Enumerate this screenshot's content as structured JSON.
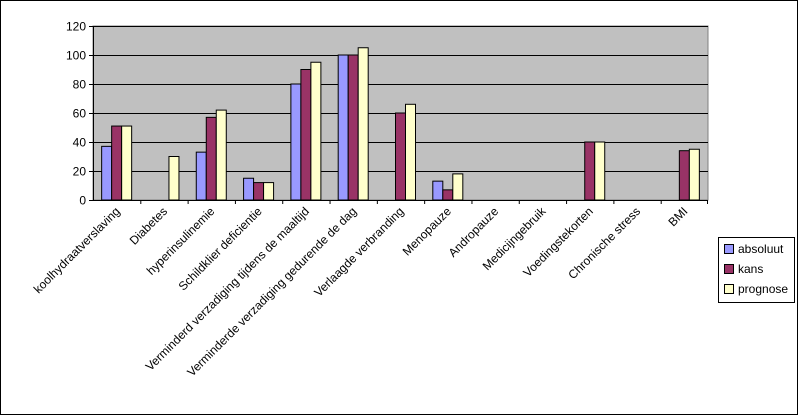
{
  "chart_data": {
    "type": "bar",
    "categories": [
      "koolhydraatverslaving",
      "Diabetes",
      "hyperinsulinemie",
      "Schildklier deficientie",
      "Verminderd verzadiging tijdens de maaltijd",
      "Verminderde verzadiging gedurende de dag",
      "Verlaagde verbranding",
      "Menopauze",
      "Andropauze",
      "Medicijngebruik",
      "Voedingstekorten",
      "Chronische stress",
      "BMI"
    ],
    "series": [
      {
        "name": "absoluut",
        "color": "#9999ff",
        "values": [
          37,
          0,
          33,
          15,
          80,
          100,
          0,
          13,
          0,
          0,
          0,
          0,
          0
        ]
      },
      {
        "name": "kans",
        "color": "#993366",
        "values": [
          51,
          0,
          57,
          12,
          90,
          100,
          60,
          7,
          0,
          0,
          40,
          0,
          34
        ]
      },
      {
        "name": "prognose",
        "color": "#ffffcc",
        "values": [
          51,
          30,
          62,
          12,
          95,
          105,
          66,
          18,
          0,
          0,
          40,
          0,
          35
        ]
      }
    ],
    "ylim": [
      0,
      120
    ],
    "yticks": [
      "0",
      "20",
      "40",
      "60",
      "80",
      "100",
      "120"
    ],
    "grid": true,
    "plot_background": "#c0c0c0",
    "legend_position": "right"
  }
}
